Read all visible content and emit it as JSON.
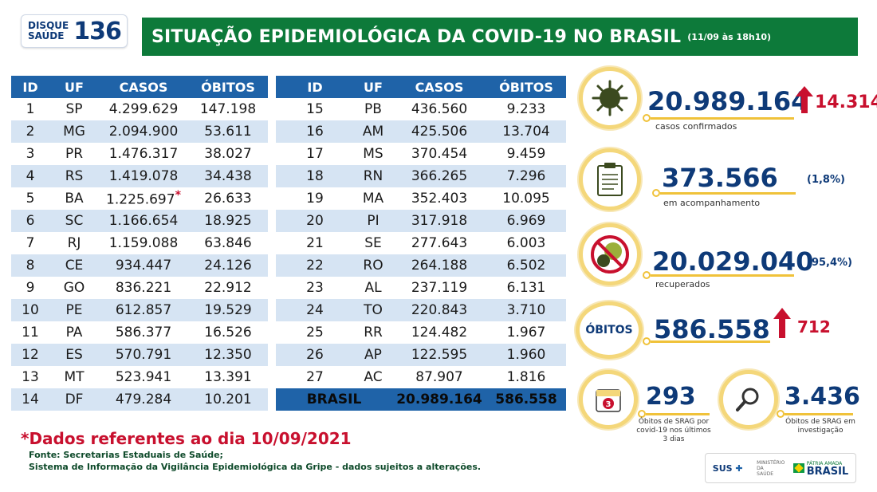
{
  "header": {
    "logo_line1": "DISQUE",
    "logo_line2": "SAÚDE",
    "logo_number": "136",
    "title": "SITUAÇÃO EPIDEMIOLÓGICA DA COVID-19 NO BRASIL",
    "date": "(11/09 às 18h10)"
  },
  "table": {
    "columns": [
      "ID",
      "UF",
      "CASOS",
      "ÓBITOS"
    ],
    "left_rows": [
      [
        "1",
        "SP",
        "4.299.629",
        "147.198"
      ],
      [
        "2",
        "MG",
        "2.094.900",
        "53.611"
      ],
      [
        "3",
        "PR",
        "1.476.317",
        "38.027"
      ],
      [
        "4",
        "RS",
        "1.419.078",
        "34.438"
      ],
      [
        "5",
        "BA",
        "1.225.697",
        "26.633"
      ],
      [
        "6",
        "SC",
        "1.166.654",
        "18.925"
      ],
      [
        "7",
        "RJ",
        "1.159.088",
        "63.846"
      ],
      [
        "8",
        "CE",
        "934.447",
        "24.126"
      ],
      [
        "9",
        "GO",
        "836.221",
        "22.912"
      ],
      [
        "10",
        "PE",
        "612.857",
        "19.529"
      ],
      [
        "11",
        "PA",
        "586.377",
        "16.526"
      ],
      [
        "12",
        "ES",
        "570.791",
        "12.350"
      ],
      [
        "13",
        "MT",
        "523.941",
        "13.391"
      ],
      [
        "14",
        "DF",
        "479.284",
        "10.201"
      ]
    ],
    "right_rows": [
      [
        "15",
        "PB",
        "436.560",
        "9.233"
      ],
      [
        "16",
        "AM",
        "425.506",
        "13.704"
      ],
      [
        "17",
        "MS",
        "370.454",
        "9.459"
      ],
      [
        "18",
        "RN",
        "366.265",
        "7.296"
      ],
      [
        "19",
        "MA",
        "352.403",
        "10.095"
      ],
      [
        "20",
        "PI",
        "317.918",
        "6.969"
      ],
      [
        "21",
        "SE",
        "277.643",
        "6.003"
      ],
      [
        "22",
        "RO",
        "264.188",
        "6.502"
      ],
      [
        "23",
        "AL",
        "237.119",
        "6.131"
      ],
      [
        "24",
        "TO",
        "220.843",
        "3.710"
      ],
      [
        "25",
        "RR",
        "124.482",
        "1.967"
      ],
      [
        "26",
        "AP",
        "122.595",
        "1.960"
      ],
      [
        "27",
        "AC",
        "87.907",
        "1.816"
      ]
    ],
    "total": {
      "label": "BRASIL",
      "casos": "20.989.164",
      "obitos": "586.558"
    },
    "star": "*"
  },
  "notes": {
    "red": "*Dados referentes ao dia 10/09/2021",
    "fonte1": "Fonte: Secretarias Estaduais de Saúde;",
    "fonte2": "Sistema de Informação da Vigilância Epidemiológica da Gripe - dados sujeitos a alterações."
  },
  "stats": {
    "confirmados": {
      "value": "20.989.164",
      "increase": "14.314",
      "label": "casos confirmados"
    },
    "acompanhamento": {
      "value": "373.566",
      "pct": "(1,8%)",
      "label": "em acompanhamento"
    },
    "recuperados": {
      "value": "20.029.040",
      "pct": "(95,4%)",
      "label": "recuperados"
    },
    "obitos": {
      "badge": "ÓBITOS",
      "value": "586.558",
      "increase": "712"
    },
    "srag_3dias": {
      "value": "293",
      "label1": "Óbitos de SRAG por",
      "label2": "covid-19 nos últimos",
      "label3": "3 dias",
      "calendar_num": "3"
    },
    "srag_investigacao": {
      "value": "3.436",
      "label1": "Óbitos de SRAG em",
      "label2": "investigação"
    }
  },
  "footer": {
    "sus": "SUS",
    "ministerio": "MINISTÉRIO DA SAÚDE",
    "brasil_top": "PÁTRIA AMADA",
    "brasil": "BRASIL"
  },
  "colors": {
    "green": "#0d7a3a",
    "blue": "#1f63a8",
    "red": "#c8102e",
    "yellow": "#f0c23a",
    "navy": "#0e3a78"
  }
}
